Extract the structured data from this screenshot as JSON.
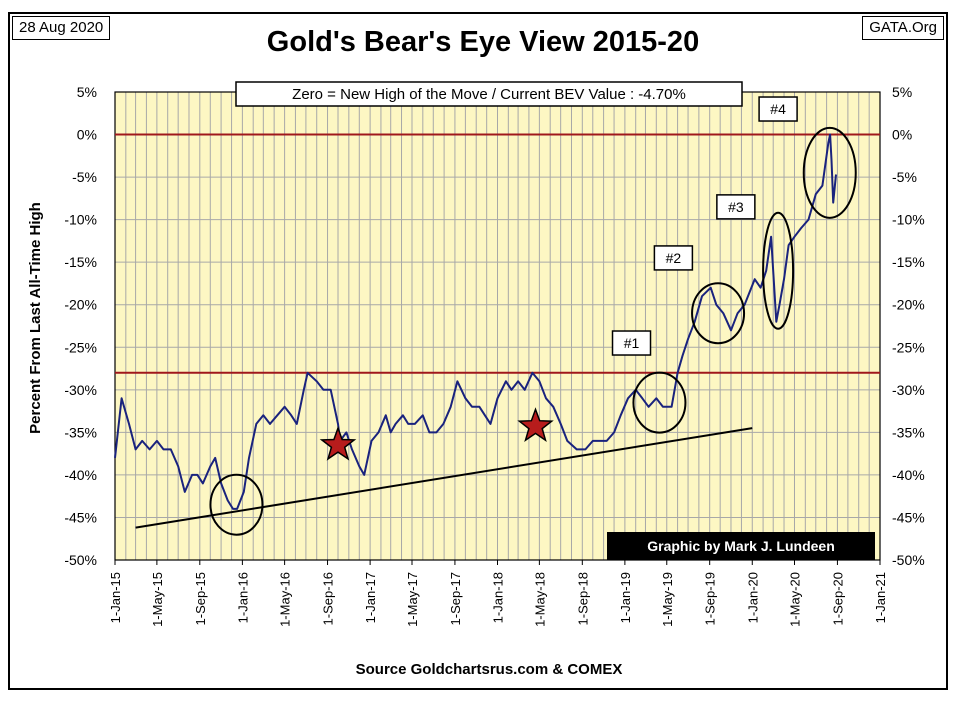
{
  "header": {
    "date": "28 Aug 2020",
    "source_tag": "GATA.Org"
  },
  "colors": {
    "plot_bg": "#fdf7c3",
    "line": "#1a237e",
    "ref_line": "#a0181c",
    "trend": "#000000",
    "star_fill": "#b71c1c"
  },
  "chart_data": {
    "type": "line",
    "title": "Gold's Bear's Eye View 2015-20",
    "subtitle": "Zero = New High of the Move / Current  BEV Value : -4.70%",
    "xlabel": "Source Goldchartsrus.com & COMEX",
    "ylabel": "Percent  From  Last  All-Time High",
    "ylim": [
      -50,
      5
    ],
    "y_ticks": [
      "5%",
      "0%",
      "-5%",
      "-10%",
      "-15%",
      "-20%",
      "-25%",
      "-30%",
      "-35%",
      "-40%",
      "-45%",
      "-50%"
    ],
    "x_ticks": [
      "1-Jan-15",
      "1-May-15",
      "1-Sep-15",
      "1-Jan-16",
      "1-May-16",
      "1-Sep-16",
      "1-Jan-17",
      "1-May-17",
      "1-Sep-17",
      "1-Jan-18",
      "1-May-18",
      "1-Sep-18",
      "1-Jan-19",
      "1-May-19",
      "1-Sep-19",
      "1-Jan-20",
      "1-May-20",
      "1-Sep-20",
      "1-Jan-21"
    ],
    "grid": true,
    "reference_lines": [
      0,
      -28
    ],
    "credit": "Graphic by Mark J. Lundeen",
    "series": [
      {
        "x": [
          "2015-01-01",
          "2015-01-20",
          "2015-02-10",
          "2015-03-01",
          "2015-03-20",
          "2015-04-10",
          "2015-05-01",
          "2015-05-20",
          "2015-06-10",
          "2015-07-01",
          "2015-07-20",
          "2015-08-10",
          "2015-08-25",
          "2015-09-10",
          "2015-10-01",
          "2015-10-15",
          "2015-11-01",
          "2015-11-20",
          "2015-12-05",
          "2015-12-17",
          "2016-01-05",
          "2016-01-20",
          "2016-02-10",
          "2016-03-01",
          "2016-03-20",
          "2016-04-10",
          "2016-05-01",
          "2016-05-20",
          "2016-06-05",
          "2016-06-25",
          "2016-07-06",
          "2016-08-01",
          "2016-08-20",
          "2016-09-10",
          "2016-10-01",
          "2016-10-07",
          "2016-10-25",
          "2016-11-10",
          "2016-12-01",
          "2016-12-15",
          "2017-01-05",
          "2017-01-25",
          "2017-02-15",
          "2017-03-01",
          "2017-03-15",
          "2017-04-05",
          "2017-04-20",
          "2017-05-09",
          "2017-06-01",
          "2017-06-20",
          "2017-07-10",
          "2017-07-30",
          "2017-08-20",
          "2017-09-08",
          "2017-10-01",
          "2017-10-20",
          "2017-11-10",
          "2017-12-12",
          "2018-01-01",
          "2018-01-25",
          "2018-02-10",
          "2018-03-01",
          "2018-03-20",
          "2018-04-11",
          "2018-05-01",
          "2018-05-20",
          "2018-06-10",
          "2018-07-01",
          "2018-07-20",
          "2018-08-16",
          "2018-09-10",
          "2018-10-01",
          "2018-10-20",
          "2018-11-10",
          "2018-12-01",
          "2018-12-20",
          "2019-01-10",
          "2019-02-01",
          "2019-02-20",
          "2019-03-10",
          "2019-04-01",
          "2019-04-20",
          "2019-05-15",
          "2019-06-01",
          "2019-06-15",
          "2019-07-01",
          "2019-07-20",
          "2019-08-10",
          "2019-09-04",
          "2019-09-20",
          "2019-10-10",
          "2019-11-01",
          "2019-11-20",
          "2019-12-10",
          "2020-01-08",
          "2020-01-25",
          "2020-02-10",
          "2020-02-24",
          "2020-03-10",
          "2020-03-19",
          "2020-04-01",
          "2020-04-14",
          "2020-05-01",
          "2020-05-20",
          "2020-06-10",
          "2020-07-01",
          "2020-07-20",
          "2020-08-06",
          "2020-08-11",
          "2020-08-15",
          "2020-08-20",
          "2020-08-28"
        ],
        "y": [
          -38,
          -31,
          -34,
          -37,
          -36,
          -37,
          -36,
          -37,
          -37,
          -39,
          -42,
          -40,
          -40,
          -41,
          -39,
          -38,
          -41,
          -43,
          -44,
          -44,
          -42,
          -38,
          -34,
          -33,
          -34,
          -33,
          -32,
          -33,
          -34,
          -30,
          -28,
          -29,
          -30,
          -30,
          -34,
          -36,
          -35,
          -37,
          -39,
          -40,
          -36,
          -35,
          -33,
          -35,
          -34,
          -33,
          -34,
          -34,
          -33,
          -35,
          -35,
          -34,
          -32,
          -29,
          -31,
          -32,
          -32,
          -34,
          -31,
          -29,
          -30,
          -29,
          -30,
          -28,
          -29,
          -31,
          -32,
          -34,
          -36,
          -37,
          -37,
          -36,
          -36,
          -36,
          -35,
          -33,
          -31,
          -30,
          -31,
          -32,
          -31,
          -32,
          -32,
          -28,
          -26,
          -24,
          -22,
          -19,
          -18,
          -20,
          -21,
          -23,
          -21,
          -20,
          -17,
          -18,
          -16,
          -12,
          -22,
          -20,
          -17,
          -13,
          -12,
          -11,
          -10,
          -7,
          -6,
          -1,
          0,
          -3,
          -8,
          -4.7
        ]
      }
    ],
    "trend_line": {
      "x": [
        "2015-03-01",
        "2020-01-01"
      ],
      "y": [
        -46.2,
        -34.5
      ]
    },
    "annotations": [
      {
        "label": "#1",
        "x": "2019-01-20",
        "y": -24.5
      },
      {
        "label": "#2",
        "x": "2019-05-20",
        "y": -14.5
      },
      {
        "label": "#3",
        "x": "2019-11-15",
        "y": -8.5
      },
      {
        "label": "#4",
        "x": "2020-03-15",
        "y": 3.0
      }
    ],
    "circles": [
      {
        "x": "2015-12-15",
        "y": -43.5
      },
      {
        "x": "2019-04-10",
        "y": -31.5
      },
      {
        "x": "2019-09-25",
        "y": -21.0
      },
      {
        "x": "2020-03-15",
        "y": -16.0
      },
      {
        "x": "2020-08-10",
        "y": -4.5
      }
    ],
    "stars": [
      {
        "x": "2016-10-01",
        "y": -36.5
      },
      {
        "x": "2018-04-20",
        "y": -34.3
      }
    ]
  }
}
